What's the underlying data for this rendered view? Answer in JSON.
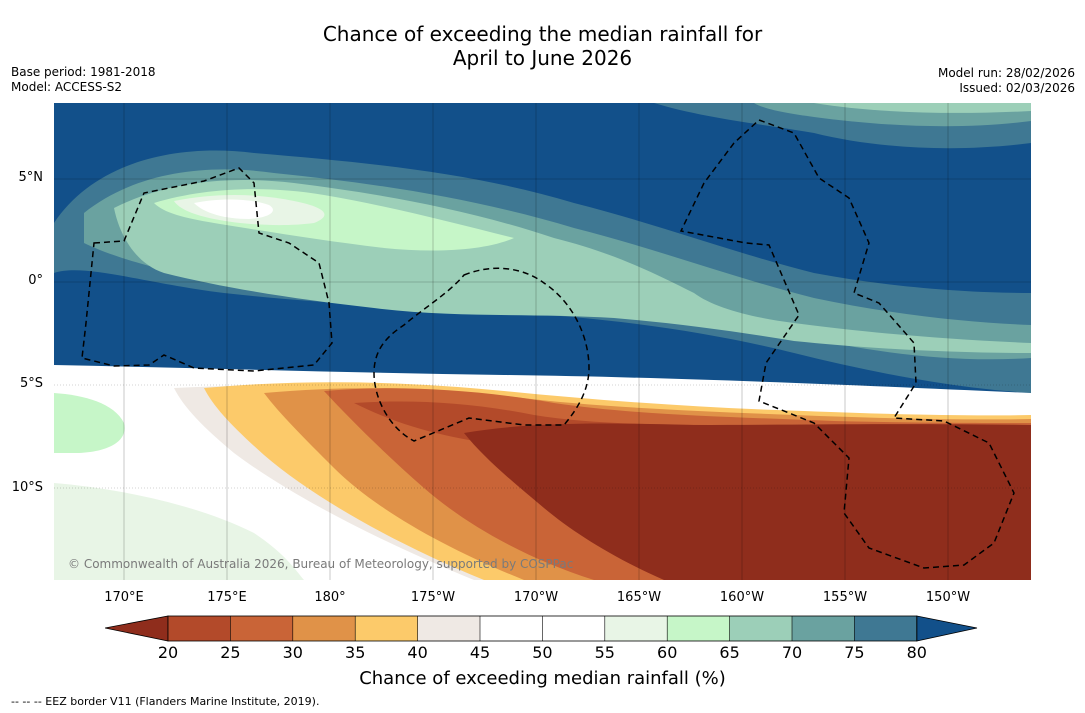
{
  "title": {
    "line1": "Chance of exceeding the median rainfall for",
    "line2": "April to June 2026"
  },
  "meta": {
    "base_period": "Base period: 1981-2018",
    "model": "Model: ACCESS-S2",
    "model_run": "Model run: 28/02/2026",
    "issued": "Issued: 02/03/2026"
  },
  "map": {
    "copyright": "© Commonwealth of Australia 2026, Bureau of Meteorology, supported by COSPPac",
    "lat_labels": [
      "5°N",
      "0°",
      "5°S",
      "10°S"
    ],
    "lon_labels": [
      "170°E",
      "175°E",
      "180°",
      "175°W",
      "170°W",
      "165°W",
      "160°W",
      "155°W",
      "150°W"
    ]
  },
  "colorbar": {
    "colors": {
      "below_20": "#8f2d1c",
      "20_25": "#b34a2a",
      "25_30": "#c96437",
      "30_35": "#e09248",
      "35_40": "#fcca6a",
      "40_45": "#efe9e4",
      "45_50": "#ffffff",
      "50_55": "#ffffff",
      "55_60": "#e8f5e6",
      "60_65": "#c6f6c8",
      "65_70": "#9ccfb8",
      "70_75": "#6aa2a0",
      "75_80": "#3f7893",
      "above_80": "#12508a"
    },
    "ticks": [
      "20",
      "25",
      "30",
      "35",
      "40",
      "45",
      "50",
      "55",
      "60",
      "65",
      "70",
      "75",
      "80"
    ],
    "label": "Chance of exceeding median rainfall (%)"
  },
  "footnote": "--  --  -- EEZ border V11 (Flanders Marine Institute, 2019)."
}
